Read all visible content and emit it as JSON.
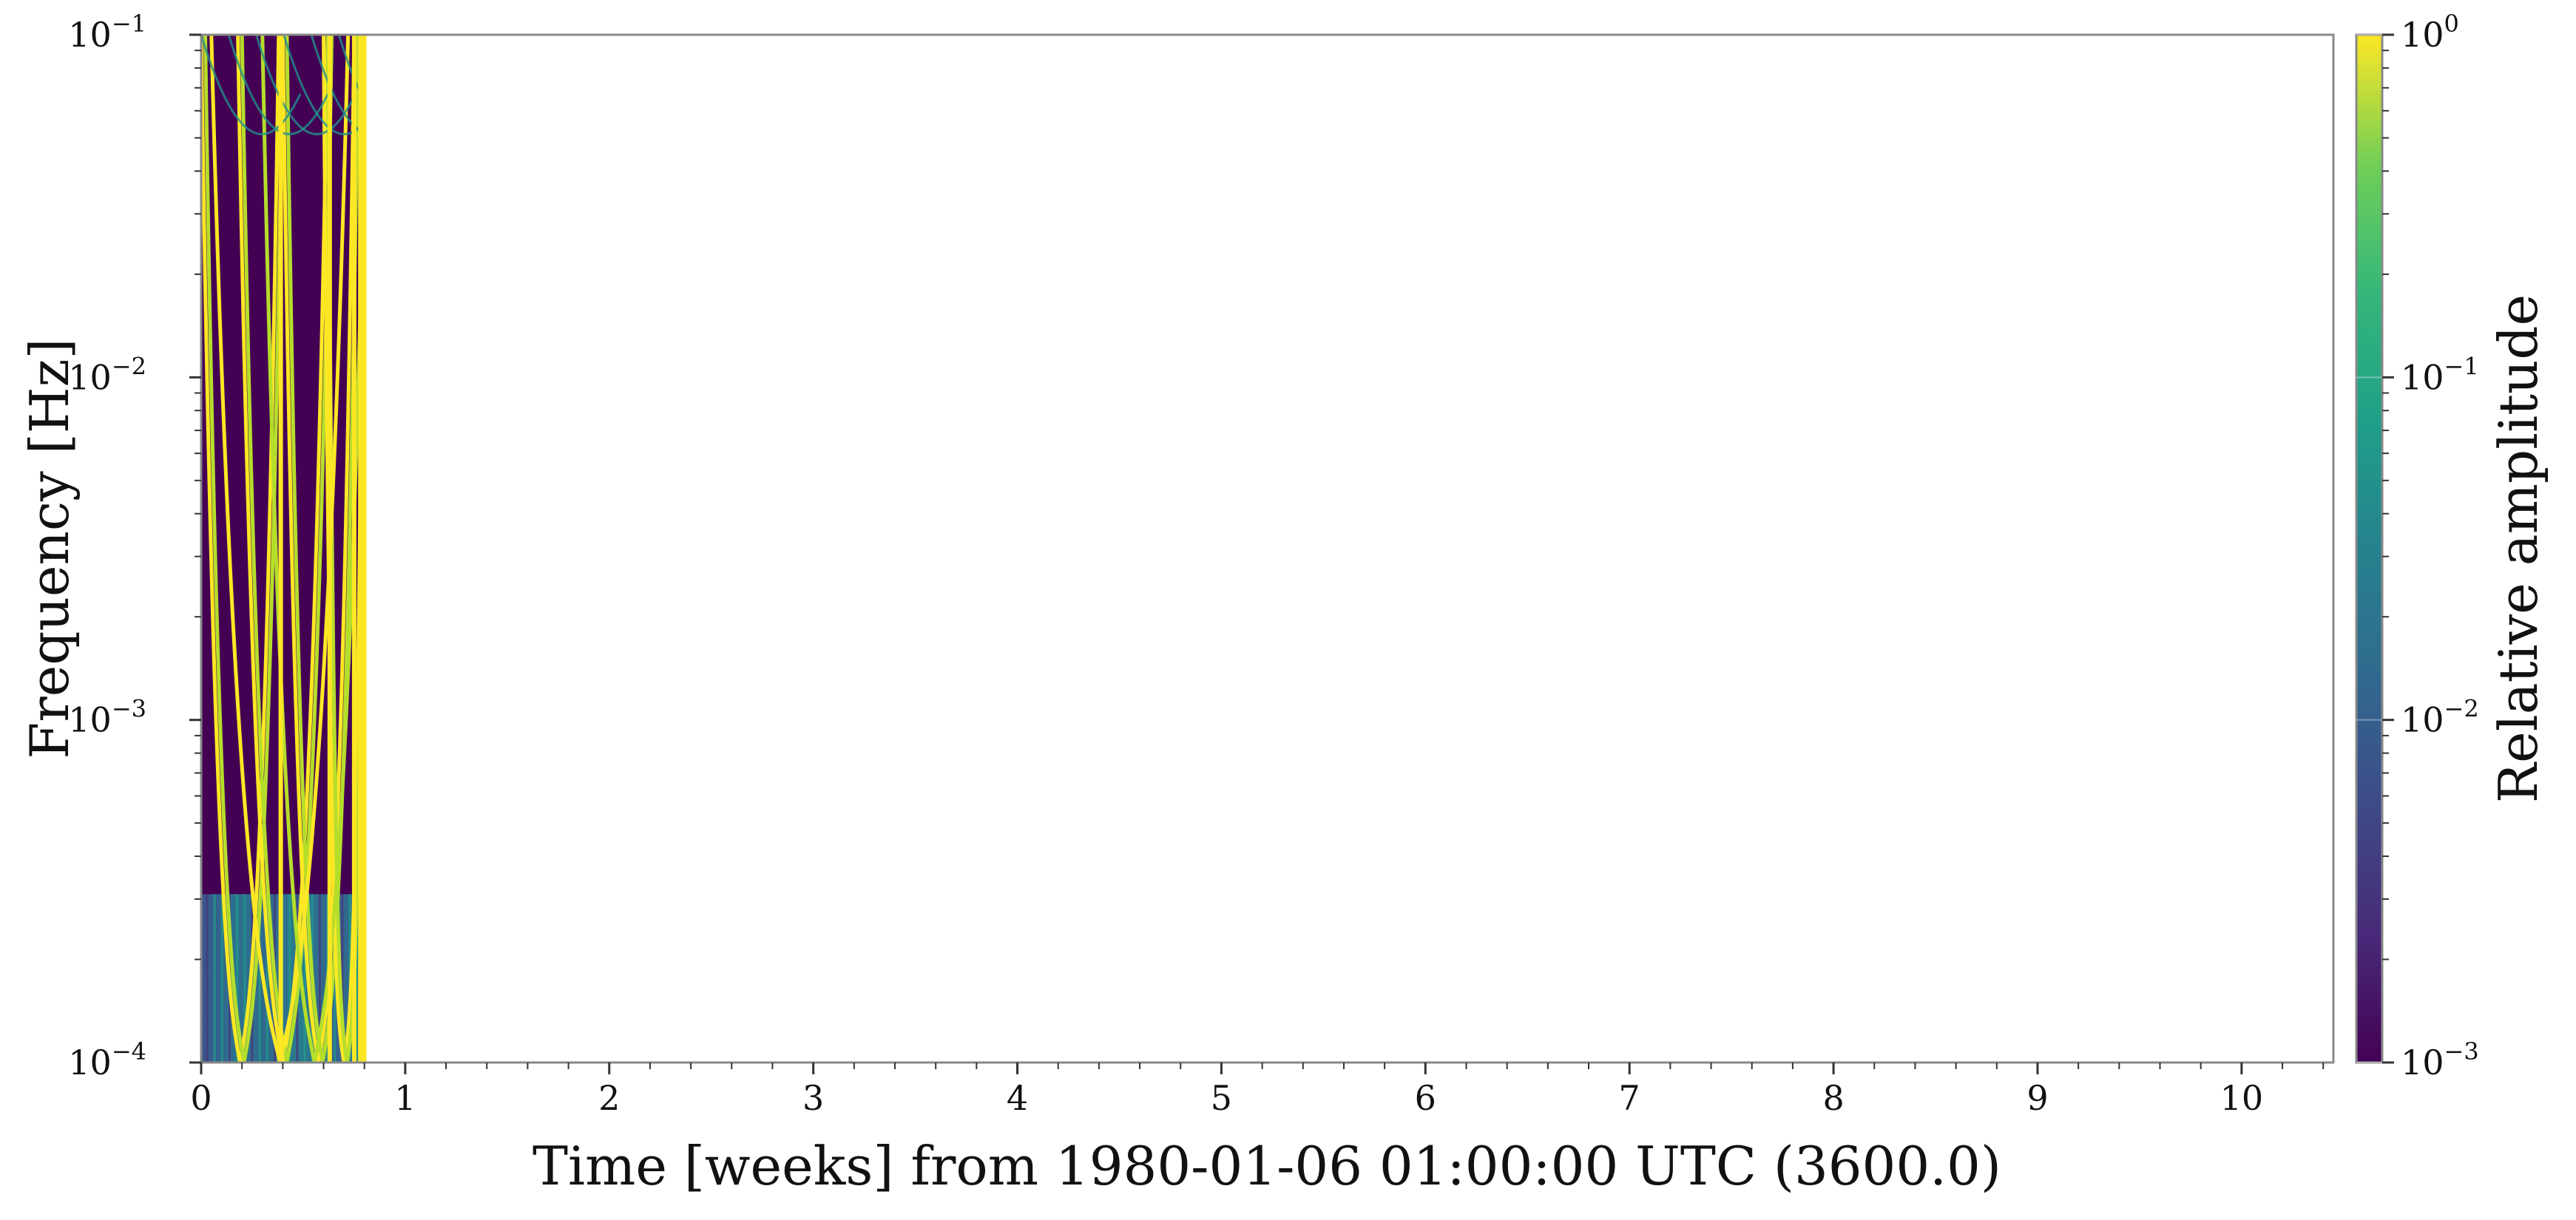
{
  "chart_data": {
    "type": "heatmap",
    "title": "",
    "xlabel": "Time [weeks] from 1980-01-06 01:00:00 UTC (3600.0)",
    "ylabel": "Frequency [Hz]",
    "xlim": [
      0,
      10.45
    ],
    "x_ticks": [
      0,
      1,
      2,
      3,
      4,
      5,
      6,
      7,
      8,
      9,
      10
    ],
    "x_tick_labels": [
      "0",
      "1",
      "2",
      "3",
      "4",
      "5",
      "6",
      "7",
      "8",
      "9",
      "10"
    ],
    "y_scale": "log",
    "ylim": [
      0.0001,
      0.1
    ],
    "y_ticks": [
      0.0001,
      0.001,
      0.01,
      0.1
    ],
    "y_tick_labels": [
      {
        "base": "10",
        "exp": "−4"
      },
      {
        "base": "10",
        "exp": "−3"
      },
      {
        "base": "10",
        "exp": "−2"
      },
      {
        "base": "10",
        "exp": "−1"
      }
    ],
    "data_extent_weeks": [
      0,
      0.81
    ],
    "colormap": "viridis",
    "colorbar": {
      "label": "Relative amplitude",
      "scale": "log",
      "range": [
        0.001,
        1
      ],
      "ticks": [
        0.001,
        0.01,
        0.1,
        1
      ],
      "tick_labels": [
        {
          "base": "10",
          "exp": "−3"
        },
        {
          "base": "10",
          "exp": "−2"
        },
        {
          "base": "10",
          "exp": "−1"
        },
        {
          "base": "10",
          "exp": "0"
        }
      ]
    },
    "colors": {
      "background_low": "#440154",
      "mid": "#21918c",
      "high": "#fde725",
      "axis": "#888888"
    },
    "grid": false,
    "legend": "none"
  }
}
